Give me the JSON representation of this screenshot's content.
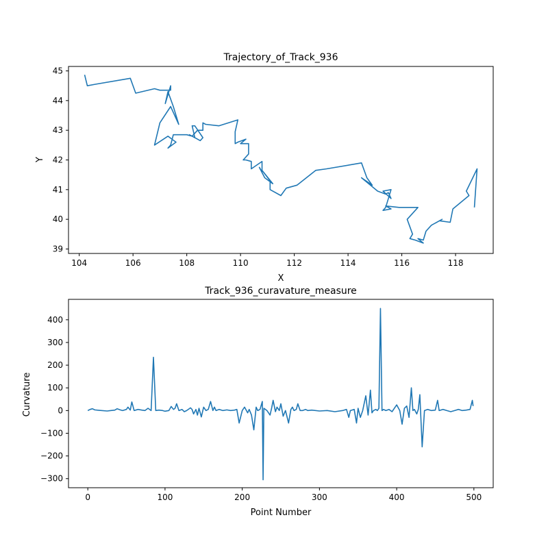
{
  "chart_data": [
    {
      "type": "line",
      "title": "Trajectory_of_Track_936",
      "xlabel": "X",
      "ylabel": "Y",
      "xlim": [
        103.6,
        119.4
      ],
      "ylim": [
        38.85,
        45.15
      ],
      "xticks": [
        104,
        106,
        108,
        110,
        112,
        114,
        116,
        118
      ],
      "yticks": [
        39,
        40,
        41,
        42,
        43,
        44,
        45
      ],
      "grid": false,
      "color": "#1f77b4",
      "series": [
        {
          "x": [
            104.2,
            104.3,
            104.6,
            105.9,
            106.1,
            106.8,
            107.0,
            107.4,
            107.4,
            107.2,
            107.3,
            107.5,
            107.7,
            107.5,
            107.4,
            107.0,
            106.8,
            107.3,
            107.6,
            107.3,
            107.4,
            107.5,
            107.7,
            108.0,
            108.2,
            108.1,
            108.3,
            108.2,
            108.3,
            108.6,
            108.5,
            108.2,
            108.4,
            108.6,
            108.6,
            108.7,
            109.2,
            109.9,
            109.8,
            109.8,
            109.9,
            110.2,
            110.0,
            110.3,
            110.3,
            110.1,
            110.2,
            110.4,
            110.4,
            110.8,
            110.8,
            110.7,
            110.9,
            111.2,
            110.8,
            111.1,
            111.1,
            111.5,
            111.7,
            112.1,
            112.8,
            113.2,
            114.5,
            114.7,
            114.9,
            114.5,
            115.1,
            115.4,
            115.5,
            115.6,
            115.3,
            115.6,
            115.4,
            115.3,
            115.6,
            115.4,
            115.9,
            116.6,
            116.2,
            116.4,
            116.3,
            116.5,
            116.8,
            116.6,
            116.8,
            116.9,
            117.1,
            117.5,
            117.4,
            117.8,
            117.9,
            118.5,
            118.4,
            118.8,
            118.7
          ],
          "y": [
            44.87,
            44.5,
            44.55,
            44.75,
            44.25,
            44.4,
            44.35,
            44.35,
            44.5,
            43.9,
            44.3,
            43.8,
            43.2,
            43.6,
            43.8,
            43.25,
            42.5,
            42.8,
            42.6,
            42.4,
            42.5,
            42.85,
            42.85,
            42.85,
            42.8,
            42.85,
            42.75,
            43.15,
            43.15,
            42.75,
            42.65,
            42.8,
            43.0,
            43.0,
            43.25,
            43.2,
            43.15,
            43.35,
            42.95,
            42.55,
            42.6,
            42.7,
            42.55,
            42.55,
            42.2,
            42.0,
            42.0,
            41.95,
            41.7,
            41.95,
            41.6,
            41.75,
            41.4,
            41.2,
            41.65,
            41.3,
            41.0,
            40.8,
            41.05,
            41.15,
            41.65,
            41.7,
            41.9,
            41.4,
            41.15,
            41.4,
            40.95,
            40.85,
            40.9,
            40.7,
            40.95,
            41.0,
            40.4,
            40.3,
            40.35,
            40.45,
            40.4,
            40.4,
            40.0,
            39.5,
            39.35,
            39.3,
            39.2,
            39.35,
            39.3,
            39.6,
            39.8,
            40.0,
            39.95,
            39.9,
            40.35,
            40.8,
            40.95,
            41.7,
            40.4
          ]
        }
      ]
    },
    {
      "type": "line",
      "title": "Track_936_curavature_measure",
      "xlabel": "Point Number",
      "ylabel": "Curvature",
      "xlim": [
        -25,
        525
      ],
      "ylim": [
        -340,
        490
      ],
      "xticks": [
        0,
        100,
        200,
        300,
        400,
        500
      ],
      "yticks": [
        -300,
        -200,
        -100,
        0,
        100,
        200,
        300,
        400
      ],
      "grid": false,
      "color": "#1f77b4",
      "series": [
        {
          "x": [
            0,
            3,
            6,
            9,
            15,
            25,
            30,
            35,
            38,
            42,
            45,
            50,
            52,
            55,
            57,
            60,
            65,
            70,
            74,
            78,
            82,
            85,
            88,
            92,
            97,
            100,
            105,
            108,
            111,
            113,
            115,
            118,
            122,
            125,
            128,
            133,
            135,
            137,
            140,
            142,
            144,
            147,
            150,
            153,
            156,
            159,
            162,
            164,
            166,
            170,
            175,
            180,
            185,
            190,
            193,
            196,
            200,
            203,
            207,
            209,
            212,
            215,
            218,
            220,
            223,
            226,
            227,
            228,
            230,
            232,
            236,
            238,
            240,
            243,
            245,
            248,
            250,
            253,
            256,
            260,
            263,
            265,
            267,
            270,
            272,
            275,
            278,
            282,
            285,
            290,
            300,
            310,
            320,
            330,
            335,
            338,
            340,
            345,
            348,
            350,
            353,
            356,
            360,
            363,
            366,
            368,
            370,
            373,
            375,
            377,
            379,
            381,
            383,
            386,
            390,
            394,
            400,
            404,
            407,
            410,
            413,
            416,
            419,
            421,
            423,
            426,
            428,
            430,
            433,
            436,
            440,
            445,
            450,
            453,
            455,
            460,
            465,
            470,
            475,
            480,
            485,
            490,
            495,
            498,
            499
          ],
          "y": [
            0,
            5,
            8,
            3,
            1,
            -2,
            0,
            2,
            8,
            3,
            0,
            5,
            15,
            2,
            38,
            0,
            5,
            2,
            0,
            10,
            0,
            235,
            0,
            2,
            0,
            -3,
            0,
            18,
            5,
            10,
            30,
            0,
            5,
            -5,
            0,
            12,
            5,
            -15,
            5,
            -20,
            10,
            -28,
            15,
            0,
            5,
            40,
            0,
            15,
            0,
            5,
            0,
            3,
            0,
            2,
            5,
            -55,
            0,
            15,
            -10,
            5,
            -20,
            -85,
            15,
            0,
            5,
            40,
            -305,
            10,
            5,
            0,
            -20,
            10,
            45,
            -5,
            15,
            0,
            30,
            -25,
            0,
            -55,
            5,
            15,
            0,
            5,
            30,
            0,
            0,
            5,
            0,
            2,
            -2,
            0,
            -5,
            0,
            5,
            -30,
            0,
            5,
            -55,
            10,
            -30,
            0,
            65,
            -20,
            90,
            -10,
            0,
            5,
            0,
            10,
            450,
            0,
            5,
            0,
            5,
            -5,
            25,
            0,
            -60,
            10,
            20,
            -30,
            100,
            0,
            5,
            -15,
            5,
            70,
            -160,
            0,
            5,
            0,
            2,
            45,
            0,
            5,
            0,
            -5,
            0,
            5,
            0,
            2,
            5,
            45,
            20
          ]
        }
      ]
    }
  ]
}
